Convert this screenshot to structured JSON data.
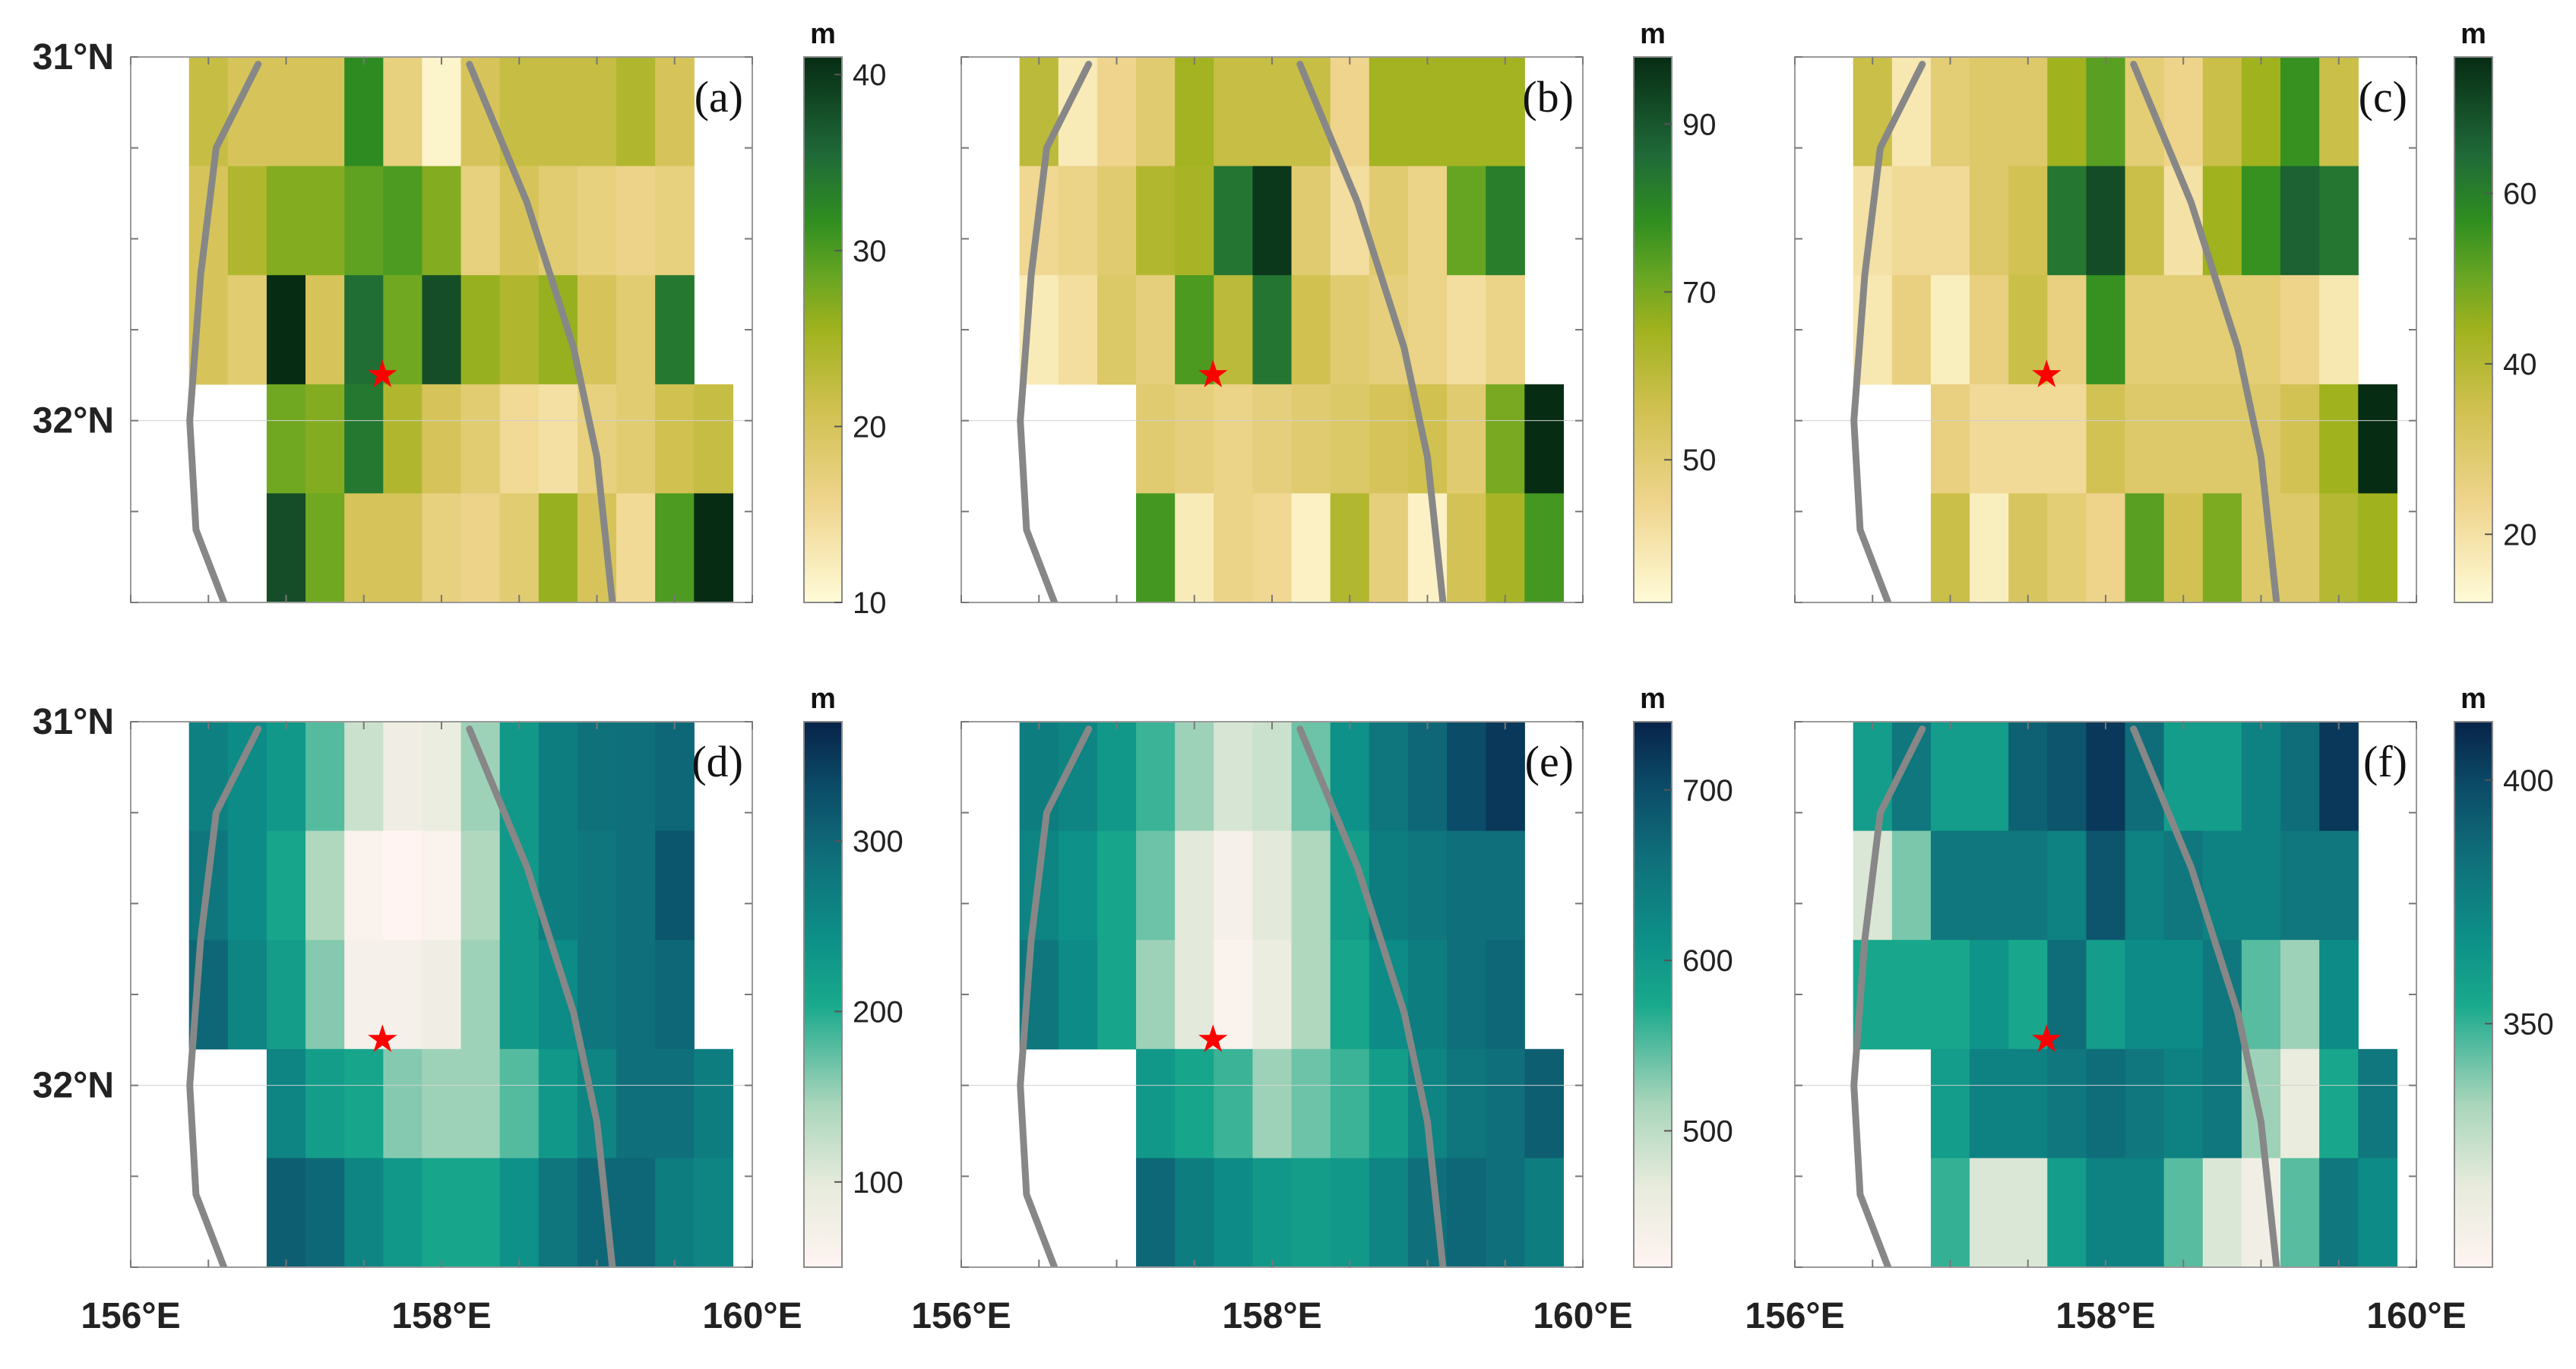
{
  "figure": {
    "x_tick_labels": [
      "156°E",
      "158°E",
      "160°E"
    ],
    "y_tick_labels": [
      "31°N",
      "32°N"
    ],
    "marker": {
      "symbol": "★",
      "color": "#ff0000",
      "lon": 157.62,
      "lat": 31.87
    }
  },
  "chart_data": [
    {
      "type": "heatmap",
      "panel_label": "(a)",
      "unit": "m",
      "palette": "green",
      "vmin": 10,
      "vmax": 41,
      "colorbar_ticks": [
        10,
        20,
        30,
        40
      ],
      "xlim": [
        156,
        160
      ],
      "ylim": [
        32.5,
        31
      ],
      "x_centers": [
        156.25,
        156.5,
        156.75,
        157.0,
        157.25,
        157.5,
        157.75,
        158.0,
        158.25,
        158.5,
        158.75,
        159.0,
        159.25,
        159.5,
        159.75
      ],
      "row_edges": [
        31.0,
        31.3,
        31.6,
        31.9,
        32.2,
        32.5
      ],
      "values": [
        [
          null,
          22,
          20,
          20,
          20,
          32,
          17,
          11,
          20,
          22,
          22,
          22,
          24,
          20,
          null
        ],
        [
          null,
          20,
          24,
          27,
          27,
          29,
          30,
          27,
          17,
          20,
          18,
          17,
          16,
          17,
          null
        ],
        [
          null,
          20,
          18,
          41,
          20,
          35,
          28,
          38,
          26,
          24,
          26,
          20,
          18,
          34,
          null
        ],
        [
          null,
          null,
          null,
          28,
          27,
          34,
          24,
          20,
          18,
          15,
          14,
          17,
          18,
          21,
          22
        ],
        [
          null,
          null,
          null,
          38,
          28,
          20,
          20,
          17,
          16,
          18,
          26,
          20,
          15,
          30,
          41
        ]
      ]
    },
    {
      "type": "heatmap",
      "panel_label": "(b)",
      "unit": "m",
      "palette": "green",
      "vmin": 33,
      "vmax": 98,
      "colorbar_ticks": [
        50,
        70,
        90
      ],
      "xlim": [
        156,
        160
      ],
      "ylim": [
        32.5,
        31
      ],
      "x_centers": [
        156.25,
        156.5,
        156.75,
        157.0,
        157.25,
        157.5,
        157.75,
        158.0,
        158.25,
        158.5,
        158.75,
        159.0,
        159.25,
        159.5,
        159.75
      ],
      "row_edges": [
        31.0,
        31.3,
        31.6,
        31.9,
        32.2,
        32.5
      ],
      "values": [
        [
          null,
          60,
          38,
          45,
          50,
          65,
          58,
          58,
          58,
          45,
          65,
          65,
          65,
          65,
          null
        ],
        [
          null,
          44,
          46,
          50,
          62,
          64,
          84,
          96,
          50,
          42,
          50,
          46,
          72,
          82,
          null
        ],
        [
          null,
          38,
          42,
          52,
          48,
          75,
          60,
          84,
          56,
          50,
          48,
          46,
          42,
          46,
          null
        ],
        [
          null,
          null,
          null,
          null,
          50,
          48,
          46,
          48,
          50,
          52,
          54,
          56,
          50,
          70,
          98
        ],
        [
          null,
          null,
          null,
          null,
          76,
          38,
          46,
          44,
          36,
          62,
          48,
          36,
          55,
          64,
          76
        ]
      ]
    },
    {
      "type": "heatmap",
      "panel_label": "(c)",
      "unit": "m",
      "palette": "green",
      "vmin": 12,
      "vmax": 76,
      "colorbar_ticks": [
        20,
        40,
        60
      ],
      "xlim": [
        156,
        160
      ],
      "ylim": [
        32.5,
        31
      ],
      "x_centers": [
        156.25,
        156.5,
        156.75,
        157.0,
        157.25,
        157.5,
        157.75,
        158.0,
        158.25,
        158.5,
        158.75,
        159.0,
        159.25,
        159.5,
        159.75
      ],
      "row_edges": [
        31.0,
        31.3,
        31.6,
        31.9,
        32.2,
        32.5
      ],
      "values": [
        [
          null,
          36,
          18,
          28,
          30,
          30,
          44,
          52,
          28,
          24,
          36,
          44,
          56,
          36,
          null
        ],
        [
          null,
          20,
          22,
          22,
          30,
          34,
          62,
          70,
          36,
          20,
          44,
          56,
          66,
          62,
          null
        ],
        [
          null,
          18,
          26,
          16,
          26,
          36,
          26,
          56,
          28,
          28,
          28,
          28,
          24,
          18,
          null
        ],
        [
          null,
          null,
          null,
          26,
          22,
          22,
          22,
          34,
          30,
          30,
          30,
          30,
          34,
          44,
          76
        ],
        [
          null,
          null,
          null,
          36,
          16,
          32,
          28,
          24,
          52,
          34,
          48,
          30,
          30,
          40,
          44
        ]
      ]
    },
    {
      "type": "heatmap",
      "panel_label": "(d)",
      "unit": "m",
      "palette": "teal",
      "vmin": 50,
      "vmax": 370,
      "colorbar_ticks": [
        100,
        200,
        300
      ],
      "xlim": [
        156,
        160
      ],
      "ylim": [
        32.5,
        31
      ],
      "x_centers": [
        156.25,
        156.5,
        156.75,
        157.0,
        157.25,
        157.5,
        157.75,
        158.0,
        158.25,
        158.5,
        158.75,
        159.0,
        159.25,
        159.5,
        159.75
      ],
      "row_edges": [
        31.0,
        31.3,
        31.6,
        31.9,
        32.2,
        32.5
      ],
      "values": [
        [
          null,
          265,
          250,
          230,
          180,
          120,
          80,
          90,
          150,
          230,
          270,
          285,
          290,
          300,
          null
        ],
        [
          null,
          280,
          250,
          210,
          140,
          60,
          50,
          60,
          140,
          230,
          270,
          280,
          290,
          320,
          null
        ],
        [
          null,
          300,
          260,
          220,
          160,
          70,
          70,
          80,
          150,
          230,
          250,
          280,
          290,
          300,
          null
        ],
        [
          null,
          null,
          null,
          260,
          220,
          210,
          160,
          150,
          150,
          180,
          230,
          260,
          290,
          290,
          270
        ],
        [
          null,
          null,
          null,
          310,
          300,
          260,
          230,
          210,
          210,
          240,
          280,
          300,
          300,
          270,
          260
        ]
      ]
    },
    {
      "type": "heatmap",
      "panel_label": "(e)",
      "unit": "m",
      "palette": "teal",
      "vmin": 420,
      "vmax": 740,
      "colorbar_ticks": [
        500,
        600,
        700
      ],
      "xlim": [
        156,
        160
      ],
      "ylim": [
        32.5,
        31
      ],
      "x_centers": [
        156.25,
        156.5,
        156.75,
        157.0,
        157.25,
        157.5,
        157.75,
        158.0,
        158.25,
        158.5,
        158.75,
        159.0,
        159.25,
        159.5,
        159.75
      ],
      "row_edges": [
        31.0,
        31.3,
        31.6,
        31.9,
        32.2,
        32.5
      ],
      "values": [
        [
          null,
          640,
          630,
          600,
          560,
          520,
          480,
          490,
          540,
          610,
          650,
          670,
          700,
          720,
          null
        ],
        [
          null,
          630,
          610,
          580,
          540,
          470,
          440,
          470,
          510,
          590,
          640,
          650,
          660,
          660,
          null
        ],
        [
          null,
          650,
          620,
          580,
          520,
          470,
          430,
          460,
          510,
          580,
          620,
          640,
          660,
          670,
          null
        ],
        [
          null,
          null,
          null,
          null,
          600,
          580,
          560,
          520,
          540,
          560,
          590,
          630,
          650,
          660,
          680
        ],
        [
          null,
          null,
          null,
          null,
          670,
          640,
          620,
          600,
          590,
          600,
          630,
          660,
          670,
          660,
          640
        ]
      ]
    },
    {
      "type": "heatmap",
      "panel_label": "(f)",
      "unit": "m",
      "palette": "teal",
      "vmin": 300,
      "vmax": 412,
      "colorbar_ticks": [
        350,
        400
      ],
      "xlim": [
        156,
        160
      ],
      "ylim": [
        32.5,
        31
      ],
      "x_centers": [
        156.25,
        156.5,
        156.75,
        157.0,
        157.25,
        157.5,
        157.75,
        158.0,
        158.25,
        158.5,
        158.75,
        159.0,
        159.25,
        159.5,
        159.75
      ],
      "row_edges": [
        31.0,
        31.3,
        31.6,
        31.9,
        32.2,
        32.5
      ],
      "values": [
        [
          null,
          360,
          380,
          360,
          360,
          390,
          395,
          405,
          385,
          360,
          360,
          375,
          385,
          405,
          null
        ],
        [
          null,
          320,
          340,
          380,
          380,
          380,
          375,
          395,
          375,
          380,
          375,
          375,
          380,
          380,
          null
        ],
        [
          null,
          355,
          355,
          355,
          365,
          355,
          385,
          360,
          370,
          370,
          380,
          345,
          335,
          370,
          null
        ],
        [
          null,
          null,
          null,
          360,
          375,
          375,
          380,
          385,
          380,
          375,
          380,
          335,
          315,
          355,
          380
        ],
        [
          null,
          null,
          null,
          350,
          320,
          320,
          360,
          375,
          375,
          345,
          320,
          310,
          345,
          380,
          370
        ]
      ]
    }
  ]
}
